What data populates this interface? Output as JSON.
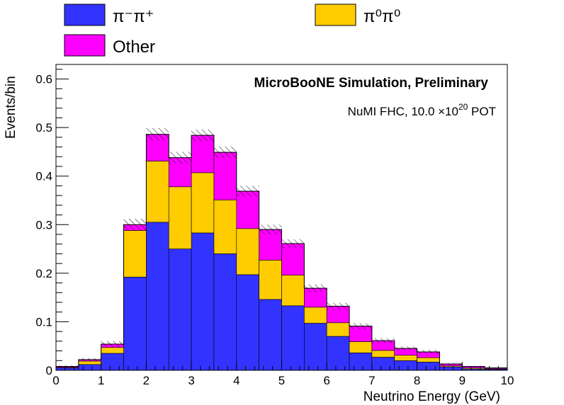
{
  "chart_data": {
    "type": "bar",
    "stacked": true,
    "title": "MicroBooNE Simulation, Preliminary",
    "subtitle": "NuMI FHC, 10.0  ×10",
    "subtitle_exponent": "20",
    "subtitle_suffix": " POT",
    "xlabel": "Neutrino Energy (GeV)",
    "ylabel": "Events/bin",
    "xlim": [
      0,
      10
    ],
    "ylim": [
      0,
      0.63
    ],
    "bin_width": 0.5,
    "x_bin_edges": [
      0,
      0.5,
      1,
      1.5,
      2,
      2.5,
      3,
      3.5,
      4,
      4.5,
      5,
      5.5,
      6,
      6.5,
      7,
      7.5,
      8,
      8.5,
      9,
      9.5,
      10
    ],
    "x_ticks": [
      "0",
      "1",
      "2",
      "3",
      "4",
      "5",
      "6",
      "7",
      "8",
      "9",
      "10"
    ],
    "y_ticks": [
      "0",
      "0.1",
      "0.2",
      "0.3",
      "0.4",
      "0.5",
      "0.6"
    ],
    "grid": false,
    "legend_position": "top",
    "series": [
      {
        "name": "π⁻π⁺",
        "color": "#3333ff",
        "values": [
          0.005,
          0.012,
          0.035,
          0.192,
          0.305,
          0.25,
          0.283,
          0.24,
          0.197,
          0.146,
          0.133,
          0.097,
          0.07,
          0.036,
          0.027,
          0.02,
          0.017,
          0.007,
          0.003,
          0.002
        ]
      },
      {
        "name": "π⁰π⁰",
        "color": "#ffcc00",
        "values": [
          0.001,
          0.007,
          0.012,
          0.096,
          0.126,
          0.128,
          0.124,
          0.111,
          0.095,
          0.081,
          0.063,
          0.033,
          0.028,
          0.023,
          0.014,
          0.011,
          0.009,
          0.002,
          0.002,
          0.001
        ]
      },
      {
        "name": "Other",
        "color": "#ff00ff",
        "values": [
          0.002,
          0.003,
          0.007,
          0.012,
          0.055,
          0.06,
          0.077,
          0.098,
          0.077,
          0.063,
          0.065,
          0.039,
          0.034,
          0.032,
          0.02,
          0.014,
          0.012,
          0.004,
          0.003,
          0.002
        ]
      }
    ],
    "stat_uncertainty": [
      0.002,
      0.003,
      0.006,
      0.012,
      0.013,
      0.012,
      0.012,
      0.012,
      0.011,
      0.01,
      0.009,
      0.008,
      0.007,
      0.006,
      0.005,
      0.004,
      0.004,
      0.002,
      0.001,
      0.001
    ]
  }
}
